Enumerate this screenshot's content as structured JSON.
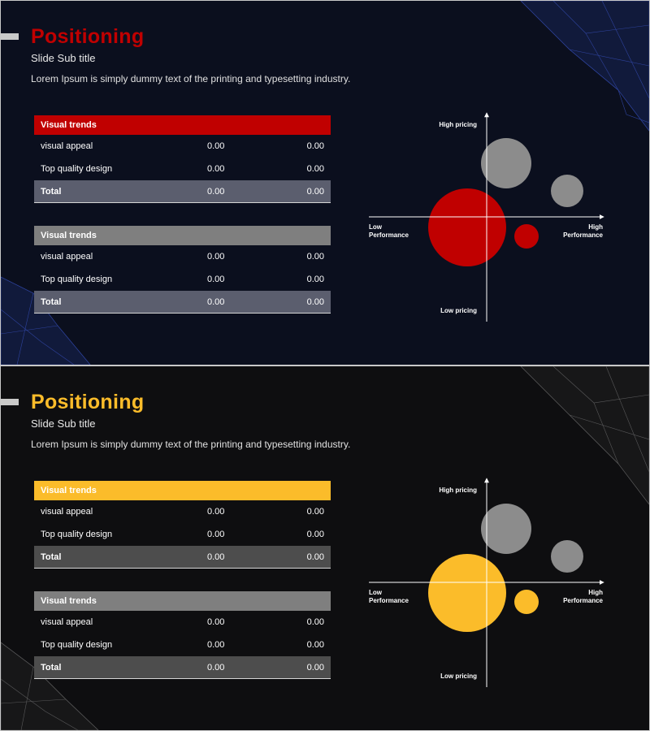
{
  "slides": [
    {
      "theme": {
        "accent": "#c00000",
        "background": "#0b0f1e",
        "muted": "#7f7f7f",
        "total_bg": "#5b5e6e",
        "deco": "#3a55c8"
      },
      "title": "Positioning",
      "subtitle": "Slide Sub title",
      "body": "Lorem Ipsum is simply dummy text of the printing and typesetting industry.",
      "tables": [
        {
          "header": "Visual trends",
          "rows": [
            [
              "visual appeal",
              "0.00",
              "0.00"
            ],
            [
              "Top quality design",
              "0.00",
              "0.00"
            ]
          ],
          "total": [
            "Total",
            "0.00",
            "0.00"
          ]
        },
        {
          "header": "Visual trends",
          "rows": [
            [
              "visual appeal",
              "0.00",
              "0.00"
            ],
            [
              "Top quality design",
              "0.00",
              "0.00"
            ]
          ],
          "total": [
            "Total",
            "0.00",
            "0.00"
          ]
        }
      ],
      "chart": {
        "y_top_label": "High pricing",
        "y_bottom_label": "Low pricing",
        "x_left_label": [
          "Low",
          "Performance"
        ],
        "x_right_label": [
          "High",
          "Performance"
        ]
      }
    },
    {
      "theme": {
        "accent": "#fbbc2a",
        "background": "#0e0e10",
        "muted": "#7f7f7f",
        "total_bg": "#4d4d4d",
        "deco": "#8a8a8a"
      },
      "title": "Positioning",
      "subtitle": "Slide Sub title",
      "body": "Lorem Ipsum is simply dummy text of the printing and typesetting industry.",
      "tables": [
        {
          "header": "Visual trends",
          "rows": [
            [
              "visual appeal",
              "0.00",
              "0.00"
            ],
            [
              "Top quality design",
              "0.00",
              "0.00"
            ]
          ],
          "total": [
            "Total",
            "0.00",
            "0.00"
          ]
        },
        {
          "header": "Visual trends",
          "rows": [
            [
              "visual appeal",
              "0.00",
              "0.00"
            ],
            [
              "Top quality design",
              "0.00",
              "0.00"
            ]
          ],
          "total": [
            "Total",
            "0.00",
            "0.00"
          ]
        }
      ],
      "chart": {
        "y_top_label": "High pricing",
        "y_bottom_label": "Low pricing",
        "x_left_label": [
          "Low",
          "Performance"
        ],
        "x_right_label": [
          "High",
          "Performance"
        ]
      }
    }
  ]
}
